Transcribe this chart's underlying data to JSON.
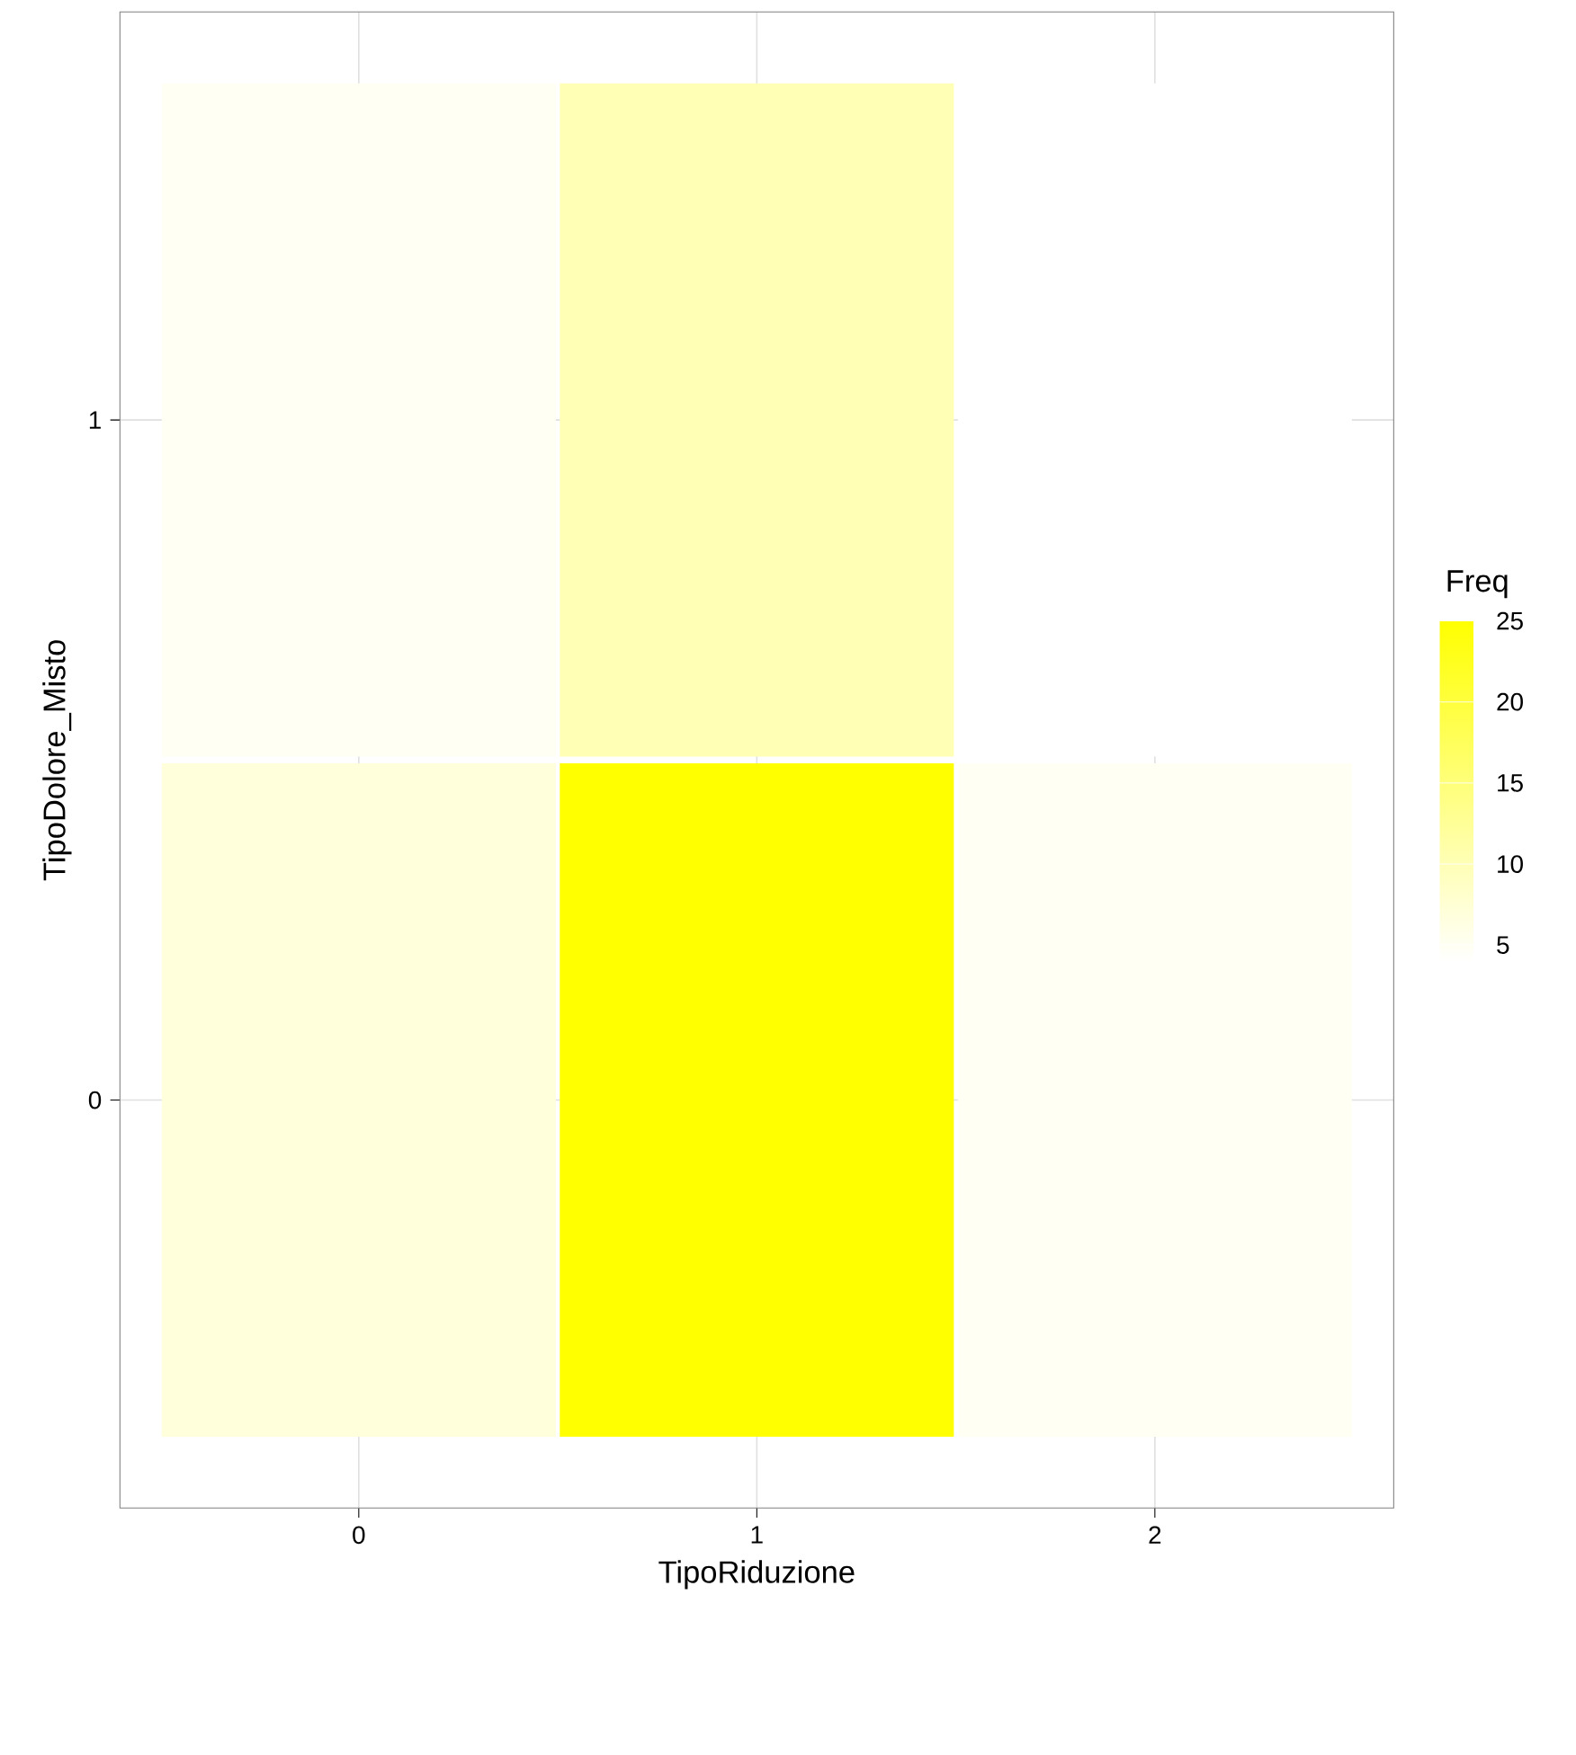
{
  "chart_data": {
    "type": "heatmap",
    "xlabel": "TipoRiduzione",
    "ylabel": "TipoDolore_Misto",
    "clabel": "Freq",
    "categories": [
      "0",
      "1",
      "2"
    ],
    "y_categories": [
      "1",
      "0"
    ],
    "cells": [
      [
        5,
        10,
        4
      ],
      [
        7,
        25,
        5
      ]
    ],
    "clim": [
      4,
      25
    ],
    "cticks": [
      5,
      10,
      15,
      20,
      25
    ],
    "grid": true
  }
}
